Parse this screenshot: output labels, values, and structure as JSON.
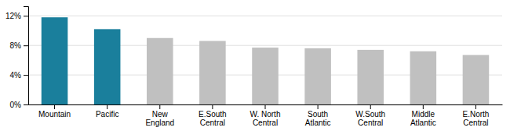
{
  "chart_data": {
    "type": "bar",
    "categories": [
      "Mountain",
      "Pacific",
      "New\nEngland",
      "E.South\nCentral",
      "W. North\nCentral",
      "South\nAtlantic",
      "W.South\nCentral",
      "Middle\nAtlantic",
      "E.North\nCentral"
    ],
    "values": [
      0.118,
      0.102,
      0.09,
      0.086,
      0.077,
      0.076,
      0.074,
      0.072,
      0.067
    ],
    "colors": [
      "#1a7f9c",
      "#1a7f9c",
      "#c0c0c0",
      "#c0c0c0",
      "#c0c0c0",
      "#c0c0c0",
      "#c0c0c0",
      "#c0c0c0",
      "#c0c0c0"
    ],
    "ylim": [
      0,
      0.133
    ],
    "yticks": [
      {
        "value": 0,
        "label": "0%"
      },
      {
        "value": 0.04,
        "label": "4%"
      },
      {
        "value": 0.08,
        "label": "8%"
      },
      {
        "value": 0.12,
        "label": "12%"
      }
    ],
    "grid": true
  }
}
